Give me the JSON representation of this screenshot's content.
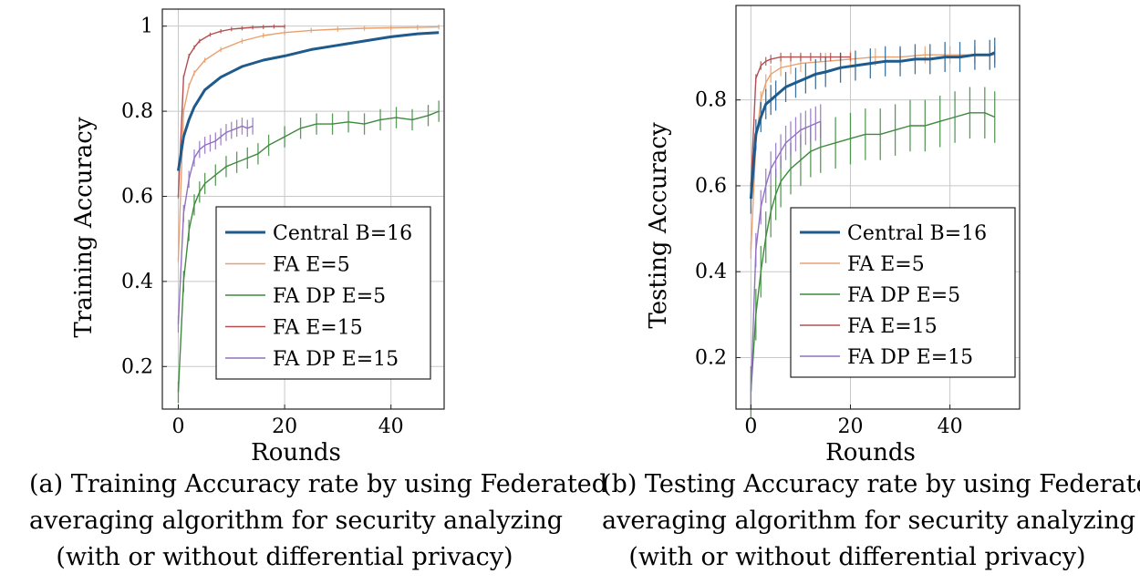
{
  "chart_data": [
    {
      "type": "line",
      "title": "",
      "xlabel": "Rounds",
      "ylabel": "Training Accuracy",
      "xlim": [
        -3,
        50
      ],
      "ylim": [
        0.1,
        1.04
      ],
      "xticks": [
        0,
        20,
        40
      ],
      "yticks": [
        0.2,
        0.4,
        0.6,
        0.8,
        1
      ],
      "xtick_labels": [
        "0",
        "20",
        "40"
      ],
      "ytick_labels": [
        "0.2",
        "0.4",
        "0.6",
        "0.8",
        "1"
      ],
      "grid": true,
      "legend": "bottom-right",
      "series": [
        {
          "name": "Central B=16",
          "color": "#1f5a8c",
          "width": 3,
          "error": 0,
          "x": [
            0,
            1,
            2,
            3,
            5,
            8,
            12,
            16,
            20,
            25,
            30,
            35,
            40,
            45,
            49
          ],
          "y": [
            0.66,
            0.74,
            0.78,
            0.81,
            0.85,
            0.88,
            0.905,
            0.92,
            0.93,
            0.945,
            0.955,
            0.965,
            0.975,
            0.982,
            0.985
          ]
        },
        {
          "name": "FA E=5",
          "color": "#e8a070",
          "width": 1.4,
          "error": 0.006,
          "x": [
            0,
            1,
            2,
            3,
            5,
            8,
            12,
            16,
            20,
            25,
            30,
            35,
            40,
            45,
            49
          ],
          "y": [
            0.45,
            0.8,
            0.86,
            0.89,
            0.92,
            0.945,
            0.965,
            0.978,
            0.985,
            0.99,
            0.993,
            0.995,
            0.996,
            0.997,
            0.998
          ]
        },
        {
          "name": "FA DP E=5",
          "color": "#3d8a3d",
          "width": 1.4,
          "error": 0.025,
          "x": [
            0,
            1,
            2,
            3,
            4,
            5,
            7,
            9,
            11,
            13,
            15,
            17,
            20,
            23,
            26,
            29,
            32,
            35,
            38,
            41,
            44,
            47,
            49
          ],
          "y": [
            0.14,
            0.4,
            0.52,
            0.58,
            0.61,
            0.63,
            0.65,
            0.67,
            0.68,
            0.69,
            0.7,
            0.72,
            0.74,
            0.76,
            0.77,
            0.77,
            0.775,
            0.77,
            0.78,
            0.785,
            0.78,
            0.79,
            0.8
          ]
        },
        {
          "name": "FA E=15",
          "color": "#b05050",
          "width": 1.4,
          "error": 0.005,
          "x": [
            0,
            1,
            2,
            3,
            4,
            6,
            8,
            10,
            12,
            14,
            16,
            18,
            20
          ],
          "y": [
            0.6,
            0.88,
            0.93,
            0.95,
            0.965,
            0.98,
            0.988,
            0.993,
            0.995,
            0.997,
            0.998,
            0.999,
            0.999
          ]
        },
        {
          "name": "FA DP E=15",
          "color": "#9070c0",
          "width": 1.4,
          "error": 0.02,
          "x": [
            0,
            1,
            2,
            3,
            4,
            5,
            6,
            7,
            8,
            9,
            10,
            11,
            12,
            13,
            14
          ],
          "y": [
            0.3,
            0.56,
            0.64,
            0.69,
            0.71,
            0.72,
            0.725,
            0.73,
            0.74,
            0.75,
            0.755,
            0.76,
            0.765,
            0.76,
            0.765
          ]
        }
      ]
    },
    {
      "type": "line",
      "title": "",
      "xlabel": "Rounds",
      "ylabel": "Testing Accuracy",
      "xlim": [
        -3,
        54
      ],
      "ylim": [
        0.08,
        1.02
      ],
      "xticks": [
        0,
        20,
        40
      ],
      "yticks": [
        0.2,
        0.4,
        0.6,
        0.8
      ],
      "xtick_labels": [
        "0",
        "20",
        "40"
      ],
      "ytick_labels": [
        "0.2",
        "0.4",
        "0.6",
        "0.8"
      ],
      "grid": true,
      "legend": "bottom-right",
      "series": [
        {
          "name": "Central B=16",
          "color": "#1f5a8c",
          "width": 3,
          "error": 0.035,
          "x": [
            0,
            1,
            2,
            3,
            4,
            5,
            7,
            9,
            11,
            13,
            15,
            18,
            21,
            24,
            27,
            30,
            33,
            36,
            39,
            42,
            45,
            48,
            49
          ],
          "y": [
            0.57,
            0.72,
            0.76,
            0.79,
            0.8,
            0.81,
            0.83,
            0.84,
            0.85,
            0.86,
            0.865,
            0.875,
            0.88,
            0.885,
            0.89,
            0.89,
            0.895,
            0.895,
            0.9,
            0.9,
            0.905,
            0.905,
            0.91
          ]
        },
        {
          "name": "FA E=5",
          "color": "#e8a070",
          "width": 1.4,
          "error": 0.02,
          "x": [
            0,
            1,
            2,
            3,
            4,
            6,
            8,
            10,
            15,
            20,
            25,
            30,
            35,
            40,
            45,
            49
          ],
          "y": [
            0.45,
            0.7,
            0.8,
            0.84,
            0.86,
            0.875,
            0.88,
            0.885,
            0.89,
            0.895,
            0.9,
            0.9,
            0.905,
            0.905,
            0.905,
            0.905
          ]
        },
        {
          "name": "FA DP E=5",
          "color": "#3d8a3d",
          "width": 1.4,
          "error": 0.06,
          "x": [
            0,
            1,
            2,
            3,
            4,
            5,
            6,
            8,
            10,
            12,
            14,
            17,
            20,
            23,
            26,
            29,
            32,
            35,
            38,
            41,
            44,
            47,
            49
          ],
          "y": [
            0.12,
            0.3,
            0.4,
            0.48,
            0.54,
            0.58,
            0.61,
            0.64,
            0.66,
            0.68,
            0.69,
            0.7,
            0.71,
            0.72,
            0.72,
            0.73,
            0.74,
            0.74,
            0.75,
            0.76,
            0.77,
            0.77,
            0.76
          ]
        },
        {
          "name": "FA E=15",
          "color": "#b05050",
          "width": 1.4,
          "error": 0.01,
          "x": [
            0,
            1,
            2,
            3,
            4,
            6,
            8,
            10,
            12,
            14,
            16,
            18,
            20
          ],
          "y": [
            0.6,
            0.85,
            0.88,
            0.89,
            0.895,
            0.9,
            0.9,
            0.9,
            0.9,
            0.9,
            0.9,
            0.9,
            0.9
          ]
        },
        {
          "name": "FA DP E=15",
          "color": "#9070c0",
          "width": 1.4,
          "error": 0.04,
          "x": [
            0,
            1,
            2,
            3,
            4,
            5,
            6,
            7,
            8,
            9,
            10,
            11,
            12,
            13,
            14
          ],
          "y": [
            0.12,
            0.45,
            0.55,
            0.6,
            0.64,
            0.66,
            0.68,
            0.7,
            0.71,
            0.72,
            0.73,
            0.735,
            0.74,
            0.745,
            0.75
          ]
        }
      ]
    }
  ],
  "captions": [
    {
      "lines": [
        "(a) Training Accuracy rate by using Federated",
        "averaging algorithm for security analyzing",
        "(with or without differential privacy)"
      ]
    },
    {
      "lines": [
        "(b) Testing Accuracy rate by using Federated",
        "averaging algorithm for security analyzing",
        "(with or without differential privacy)"
      ]
    }
  ]
}
